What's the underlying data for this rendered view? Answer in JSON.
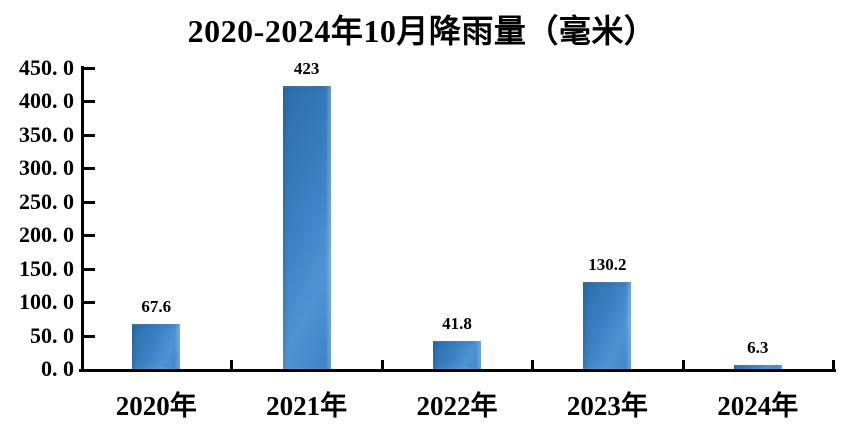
{
  "chart_data": {
    "type": "bar",
    "title": "2020-2024年10月降雨量（毫米）",
    "categories": [
      "2020年",
      "2021年",
      "2022年",
      "2023年",
      "2024年"
    ],
    "values": [
      67.6,
      423,
      41.8,
      130.2,
      6.3
    ],
    "value_labels": [
      "67.6",
      "423",
      "41.8",
      "130.2",
      "6.3"
    ],
    "xlabel": "",
    "ylabel": "",
    "ylim": [
      0,
      450
    ],
    "y_tick_step": 50,
    "y_tick_labels": [
      "450. 0",
      "400. 0",
      "350. 0",
      "300. 0",
      "250. 0",
      "200. 0",
      "150. 0",
      "100. 0",
      "50. 0",
      "0. 0"
    ],
    "grid": "off",
    "legend": "none",
    "colors": {
      "bar_dark": "#2a6dab",
      "bar_mid": "#3b82c4",
      "bar_light": "#4e94d5",
      "axis": "#000000",
      "text": "#000000",
      "background": "#ffffff"
    }
  }
}
